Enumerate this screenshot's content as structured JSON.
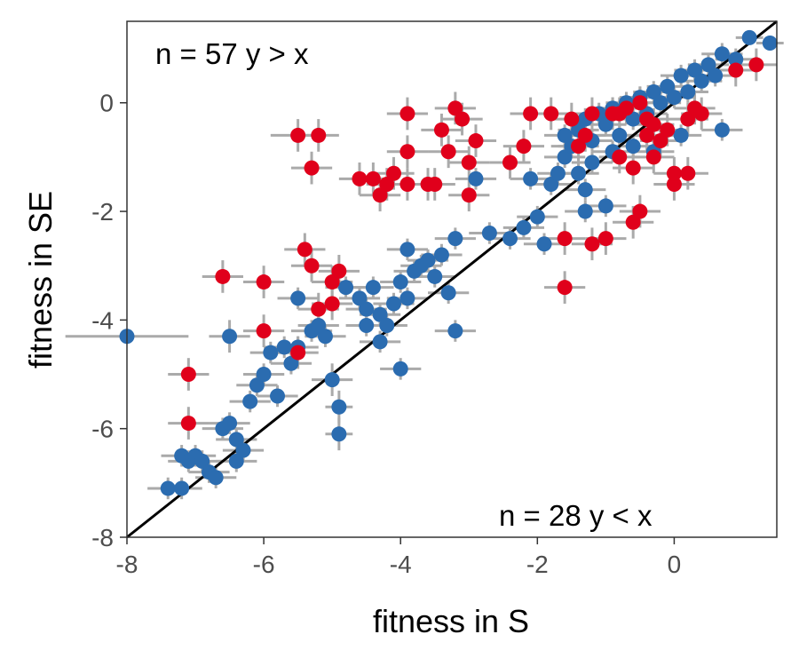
{
  "chart_data": {
    "type": "scatter",
    "title": "",
    "xlabel": "fitness in S",
    "ylabel": "fitness in SE",
    "xlim": [
      -8,
      1.5
    ],
    "ylim": [
      -8,
      1.5
    ],
    "xticks": [
      "-8",
      "-6",
      "-4",
      "-2",
      "0"
    ],
    "yticks": [
      "-8",
      "-6",
      "-4",
      "-2",
      "0"
    ],
    "grid": false,
    "legend": "none",
    "reference_line": "y = x",
    "annotations": {
      "above": "n = 57 y > x",
      "below": "n = 28 y < x"
    },
    "colors": {
      "blue": "#2b6cb0",
      "red": "#e0001b",
      "errorbar": "#aaaaaa",
      "line": "#000000"
    },
    "series": [
      {
        "color_key": "blue",
        "points": [
          [
            -8.0,
            -4.3,
            0.9,
            0.1
          ],
          [
            -7.4,
            -7.1,
            0.3,
            0.2
          ],
          [
            -7.2,
            -7.1,
            0.3,
            0.2
          ],
          [
            -7.2,
            -6.5,
            0.3,
            0.2
          ],
          [
            -7.1,
            -6.6,
            0.3,
            0.2
          ],
          [
            -7.0,
            -6.5,
            0.3,
            0.2
          ],
          [
            -6.9,
            -6.6,
            0.3,
            0.2
          ],
          [
            -6.8,
            -6.8,
            0.3,
            0.2
          ],
          [
            -6.7,
            -6.9,
            0.3,
            0.2
          ],
          [
            -6.6,
            -6.0,
            0.3,
            0.2
          ],
          [
            -6.5,
            -5.9,
            0.3,
            0.2
          ],
          [
            -6.4,
            -6.2,
            0.3,
            0.2
          ],
          [
            -6.3,
            -6.4,
            0.3,
            0.2
          ],
          [
            -6.2,
            -5.5,
            0.3,
            0.2
          ],
          [
            -6.4,
            -6.6,
            0.3,
            0.2
          ],
          [
            -6.5,
            -4.3,
            0.3,
            0.3
          ],
          [
            -6.1,
            -5.2,
            0.3,
            0.2
          ],
          [
            -6.0,
            -5.0,
            0.3,
            0.2
          ],
          [
            -5.9,
            -4.6,
            0.3,
            0.2
          ],
          [
            -5.8,
            -5.4,
            0.3,
            0.2
          ],
          [
            -5.7,
            -4.5,
            0.3,
            0.2
          ],
          [
            -5.6,
            -4.8,
            0.3,
            0.2
          ],
          [
            -5.5,
            -4.5,
            0.3,
            0.2
          ],
          [
            -5.3,
            -4.2,
            0.3,
            0.2
          ],
          [
            -5.2,
            -4.1,
            0.3,
            0.2
          ],
          [
            -5.1,
            -4.3,
            0.3,
            0.2
          ],
          [
            -5.5,
            -3.6,
            0.3,
            0.2
          ],
          [
            -5.0,
            -5.1,
            0.3,
            0.3
          ],
          [
            -4.9,
            -5.6,
            0.2,
            0.3
          ],
          [
            -4.9,
            -6.1,
            0.2,
            0.3
          ],
          [
            -4.8,
            -3.4,
            0.3,
            0.2
          ],
          [
            -4.6,
            -3.6,
            0.3,
            0.2
          ],
          [
            -4.5,
            -3.8,
            0.3,
            0.2
          ],
          [
            -4.4,
            -3.4,
            0.3,
            0.2
          ],
          [
            -4.3,
            -3.9,
            0.3,
            0.2
          ],
          [
            -4.2,
            -4.1,
            0.3,
            0.2
          ],
          [
            -4.1,
            -3.7,
            0.3,
            0.2
          ],
          [
            -4.0,
            -3.3,
            0.3,
            0.2
          ],
          [
            -3.9,
            -3.6,
            0.3,
            0.2
          ],
          [
            -3.8,
            -3.1,
            0.3,
            0.2
          ],
          [
            -3.7,
            -3.0,
            0.3,
            0.2
          ],
          [
            -3.6,
            -2.9,
            0.3,
            0.2
          ],
          [
            -3.5,
            -3.2,
            0.3,
            0.2
          ],
          [
            -3.4,
            -2.8,
            0.3,
            0.2
          ],
          [
            -3.3,
            -3.5,
            0.3,
            0.2
          ],
          [
            -3.2,
            -4.2,
            0.3,
            0.2
          ],
          [
            -4.0,
            -4.9,
            0.3,
            0.2
          ],
          [
            -4.3,
            -4.4,
            0.3,
            0.2
          ],
          [
            -4.5,
            -4.1,
            0.3,
            0.2
          ],
          [
            -3.9,
            -2.7,
            0.3,
            0.2
          ],
          [
            -3.2,
            -2.5,
            0.3,
            0.2
          ],
          [
            -2.9,
            -1.4,
            0.3,
            0.2
          ],
          [
            -2.7,
            -2.4,
            0.3,
            0.2
          ],
          [
            -2.4,
            -2.5,
            0.3,
            0.2
          ],
          [
            -2.2,
            -2.3,
            0.3,
            0.2
          ],
          [
            -2.0,
            -2.1,
            0.3,
            0.2
          ],
          [
            -1.9,
            -2.6,
            0.3,
            0.2
          ],
          [
            -1.8,
            -1.5,
            0.3,
            0.2
          ],
          [
            -1.7,
            -1.3,
            0.3,
            0.2
          ],
          [
            -1.6,
            -1.0,
            0.3,
            0.2
          ],
          [
            -1.5,
            -0.8,
            0.3,
            0.2
          ],
          [
            -1.4,
            -0.5,
            0.3,
            0.2
          ],
          [
            -1.3,
            -0.3,
            0.3,
            0.2
          ],
          [
            -1.2,
            -0.7,
            0.3,
            0.2
          ],
          [
            -1.1,
            -0.2,
            0.3,
            0.2
          ],
          [
            -1.0,
            -0.4,
            0.3,
            0.2
          ],
          [
            -0.9,
            -0.1,
            0.3,
            0.2
          ],
          [
            -0.8,
            -0.6,
            0.3,
            0.2
          ],
          [
            -0.7,
            0.0,
            0.3,
            0.2
          ],
          [
            -0.6,
            -0.3,
            0.3,
            0.2
          ],
          [
            -0.5,
            0.1,
            0.3,
            0.2
          ],
          [
            -0.4,
            -0.2,
            0.3,
            0.2
          ],
          [
            -0.3,
            0.2,
            0.3,
            0.2
          ],
          [
            -0.2,
            0.0,
            0.3,
            0.2
          ],
          [
            -0.1,
            0.3,
            0.3,
            0.2
          ],
          [
            0.0,
            0.1,
            0.3,
            0.2
          ],
          [
            0.1,
            0.5,
            0.3,
            0.2
          ],
          [
            0.2,
            0.2,
            0.3,
            0.2
          ],
          [
            0.3,
            0.6,
            0.3,
            0.2
          ],
          [
            0.4,
            0.4,
            0.3,
            0.2
          ],
          [
            0.5,
            0.7,
            0.3,
            0.2
          ],
          [
            0.6,
            0.5,
            0.3,
            0.2
          ],
          [
            0.7,
            0.9,
            0.3,
            0.2
          ],
          [
            0.9,
            0.8,
            0.3,
            0.2
          ],
          [
            1.1,
            1.2,
            0.2,
            0.1
          ],
          [
            1.4,
            1.1,
            0.2,
            0.1
          ],
          [
            -1.3,
            -1.6,
            0.3,
            0.2
          ],
          [
            -1.2,
            -1.1,
            0.3,
            0.2
          ],
          [
            -0.9,
            -0.9,
            0.3,
            0.2
          ],
          [
            -0.6,
            -0.8,
            0.3,
            0.2
          ],
          [
            -1.4,
            -1.3,
            0.3,
            0.2
          ],
          [
            -1.6,
            -0.6,
            0.3,
            0.2
          ],
          [
            -0.3,
            -0.9,
            0.3,
            0.2
          ],
          [
            0.1,
            -0.6,
            0.3,
            0.2
          ],
          [
            0.7,
            -0.5,
            0.3,
            0.2
          ],
          [
            -2.1,
            -1.4,
            0.3,
            0.2
          ],
          [
            -1.0,
            -1.9,
            0.3,
            0.2
          ],
          [
            -1.3,
            -2.0,
            0.3,
            0.2
          ]
        ]
      },
      {
        "color_key": "red",
        "points": [
          [
            -7.1,
            -5.0,
            0.3,
            0.3
          ],
          [
            -7.1,
            -5.9,
            0.3,
            0.3
          ],
          [
            -6.6,
            -3.2,
            0.3,
            0.3
          ],
          [
            -6.0,
            -3.3,
            0.3,
            0.3
          ],
          [
            -6.0,
            -4.2,
            0.3,
            0.3
          ],
          [
            -5.5,
            -4.6,
            0.3,
            0.3
          ],
          [
            -5.5,
            -0.6,
            0.4,
            0.3
          ],
          [
            -5.4,
            -2.7,
            0.3,
            0.3
          ],
          [
            -5.3,
            -3.0,
            0.3,
            0.3
          ],
          [
            -5.3,
            -1.2,
            0.3,
            0.3
          ],
          [
            -5.2,
            -0.6,
            0.3,
            0.3
          ],
          [
            -5.2,
            -3.8,
            0.3,
            0.3
          ],
          [
            -5.0,
            -3.7,
            0.3,
            0.3
          ],
          [
            -5.0,
            -3.3,
            0.3,
            0.3
          ],
          [
            -4.9,
            -3.1,
            0.3,
            0.3
          ],
          [
            -4.6,
            -1.4,
            0.3,
            0.3
          ],
          [
            -4.4,
            -1.4,
            0.3,
            0.3
          ],
          [
            -4.3,
            -1.7,
            0.3,
            0.3
          ],
          [
            -4.2,
            -1.5,
            0.3,
            0.3
          ],
          [
            -4.1,
            -1.3,
            0.3,
            0.3
          ],
          [
            -3.9,
            -1.5,
            0.3,
            0.3
          ],
          [
            -3.9,
            -0.9,
            0.3,
            0.3
          ],
          [
            -3.9,
            -0.2,
            0.3,
            0.3
          ],
          [
            -3.6,
            -1.5,
            0.3,
            0.3
          ],
          [
            -3.5,
            -1.5,
            0.3,
            0.3
          ],
          [
            -3.4,
            -0.5,
            0.3,
            0.3
          ],
          [
            -3.3,
            -0.9,
            0.3,
            0.3
          ],
          [
            -3.2,
            -0.1,
            0.3,
            0.3
          ],
          [
            -3.1,
            -0.3,
            0.3,
            0.3
          ],
          [
            -3.0,
            -1.7,
            0.3,
            0.3
          ],
          [
            -3.0,
            -1.1,
            0.3,
            0.3
          ],
          [
            -2.9,
            -0.7,
            0.3,
            0.3
          ],
          [
            -2.4,
            -1.1,
            0.3,
            0.3
          ],
          [
            -2.2,
            -0.8,
            0.3,
            0.3
          ],
          [
            -2.1,
            -0.2,
            0.3,
            0.3
          ],
          [
            -1.8,
            -0.2,
            0.3,
            0.3
          ],
          [
            -1.6,
            -2.5,
            0.3,
            0.3
          ],
          [
            -1.6,
            -3.4,
            0.3,
            0.3
          ],
          [
            -1.5,
            -0.3,
            0.3,
            0.3
          ],
          [
            -1.4,
            -0.8,
            0.3,
            0.3
          ],
          [
            -1.3,
            -0.6,
            0.3,
            0.3
          ],
          [
            -1.2,
            -0.2,
            0.3,
            0.3
          ],
          [
            -1.2,
            -2.6,
            0.3,
            0.3
          ],
          [
            -1.0,
            -2.5,
            0.3,
            0.3
          ],
          [
            -0.9,
            -0.2,
            0.3,
            0.3
          ],
          [
            -0.8,
            -1.0,
            0.3,
            0.3
          ],
          [
            -0.8,
            -0.2,
            0.3,
            0.3
          ],
          [
            -0.7,
            -0.1,
            0.3,
            0.3
          ],
          [
            -0.6,
            -1.2,
            0.3,
            0.3
          ],
          [
            -0.6,
            -2.2,
            0.3,
            0.3
          ],
          [
            -0.5,
            -2.0,
            0.3,
            0.3
          ],
          [
            -0.4,
            -0.6,
            0.3,
            0.3
          ],
          [
            -0.4,
            -0.3,
            0.3,
            0.3
          ],
          [
            -0.3,
            -1.0,
            0.3,
            0.3
          ],
          [
            -0.2,
            -0.7,
            0.3,
            0.3
          ],
          [
            -0.1,
            -0.5,
            0.3,
            0.3
          ],
          [
            0.0,
            -1.5,
            0.3,
            0.3
          ],
          [
            0.0,
            -1.3,
            0.3,
            0.3
          ],
          [
            0.2,
            -0.3,
            0.3,
            0.3
          ],
          [
            0.2,
            -1.3,
            0.3,
            0.3
          ],
          [
            0.3,
            -0.1,
            0.3,
            0.3
          ],
          [
            0.4,
            -0.2,
            0.3,
            0.3
          ],
          [
            0.9,
            0.6,
            0.3,
            0.3
          ],
          [
            1.2,
            0.7,
            0.3,
            0.3
          ],
          [
            -0.5,
            0.0,
            0.3,
            0.3
          ],
          [
            -0.3,
            -0.4,
            0.3,
            0.3
          ]
        ]
      }
    ]
  }
}
